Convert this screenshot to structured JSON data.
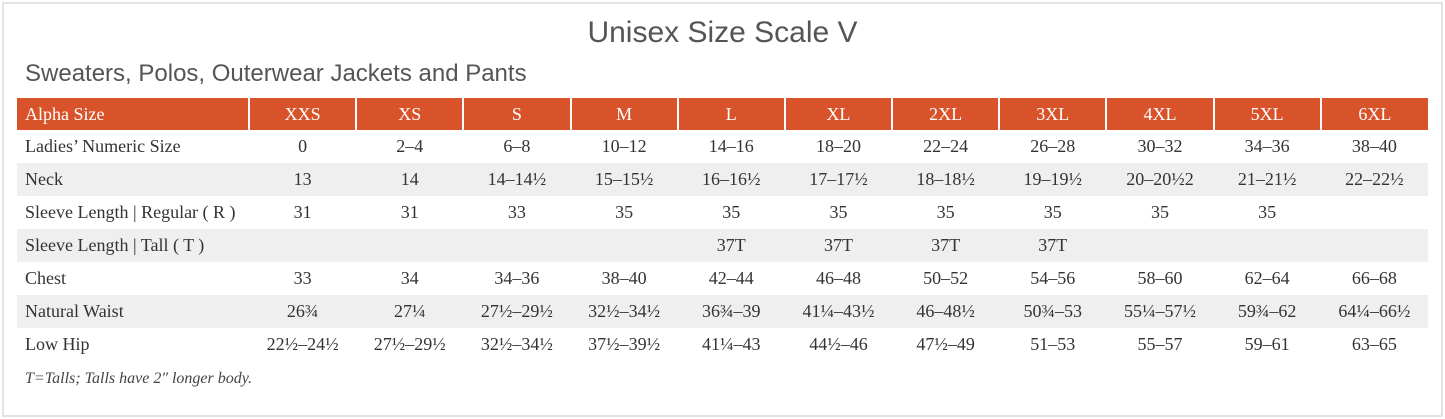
{
  "header": {
    "title": "Unisex Size Scale V",
    "subtitle": "Sweaters, Polos, Outerwear Jackets and Pants"
  },
  "table": {
    "columns": [
      "Alpha Size",
      "XXS",
      "XS",
      "S",
      "M",
      "L",
      "XL",
      "2XL",
      "3XL",
      "4XL",
      "5XL",
      "6XL"
    ],
    "rows": [
      [
        "Ladies’ Numeric Size",
        "0",
        "2–4",
        "6–8",
        "10–12",
        "14–16",
        "18–20",
        "22–24",
        "26–28",
        "30–32",
        "34–36",
        "38–40"
      ],
      [
        "Neck",
        "13",
        "14",
        "14–14½",
        "15–15½",
        "16–16½",
        "17–17½",
        "18–18½",
        "19–19½",
        "20–20½2",
        "21–21½",
        "22–22½"
      ],
      [
        "Sleeve Length | Regular ( R )",
        "31",
        "31",
        "33",
        "35",
        "35",
        "35",
        "35",
        "35",
        "35",
        "35",
        null
      ],
      [
        "Sleeve Length | Tall ( T )",
        null,
        null,
        null,
        null,
        "37T",
        "37T",
        "37T",
        "37T",
        null,
        null,
        null
      ],
      [
        "Chest",
        "33",
        "34",
        "34–36",
        "38–40",
        "42–44",
        "46–48",
        "50–52",
        "54–56",
        "58–60",
        "62–64",
        "66–68"
      ],
      [
        "Natural Waist",
        "26¾",
        "27¼",
        "27½–29½",
        "32½–34½",
        "36¾–39",
        "41¼–43½",
        "46–48½",
        "50¾–53",
        "55¼–57½",
        "59¾–62",
        "64¼–66½"
      ],
      [
        "Low Hip",
        "22½–24½",
        "27½–29½",
        "32½–34½",
        "37½–39½",
        "41¼–43",
        "44½–46",
        "47½–49",
        "51–53",
        "55–57",
        "59–61",
        "63–65"
      ]
    ]
  },
  "footnote": "T=Talls; Talls have 2″ longer body."
}
